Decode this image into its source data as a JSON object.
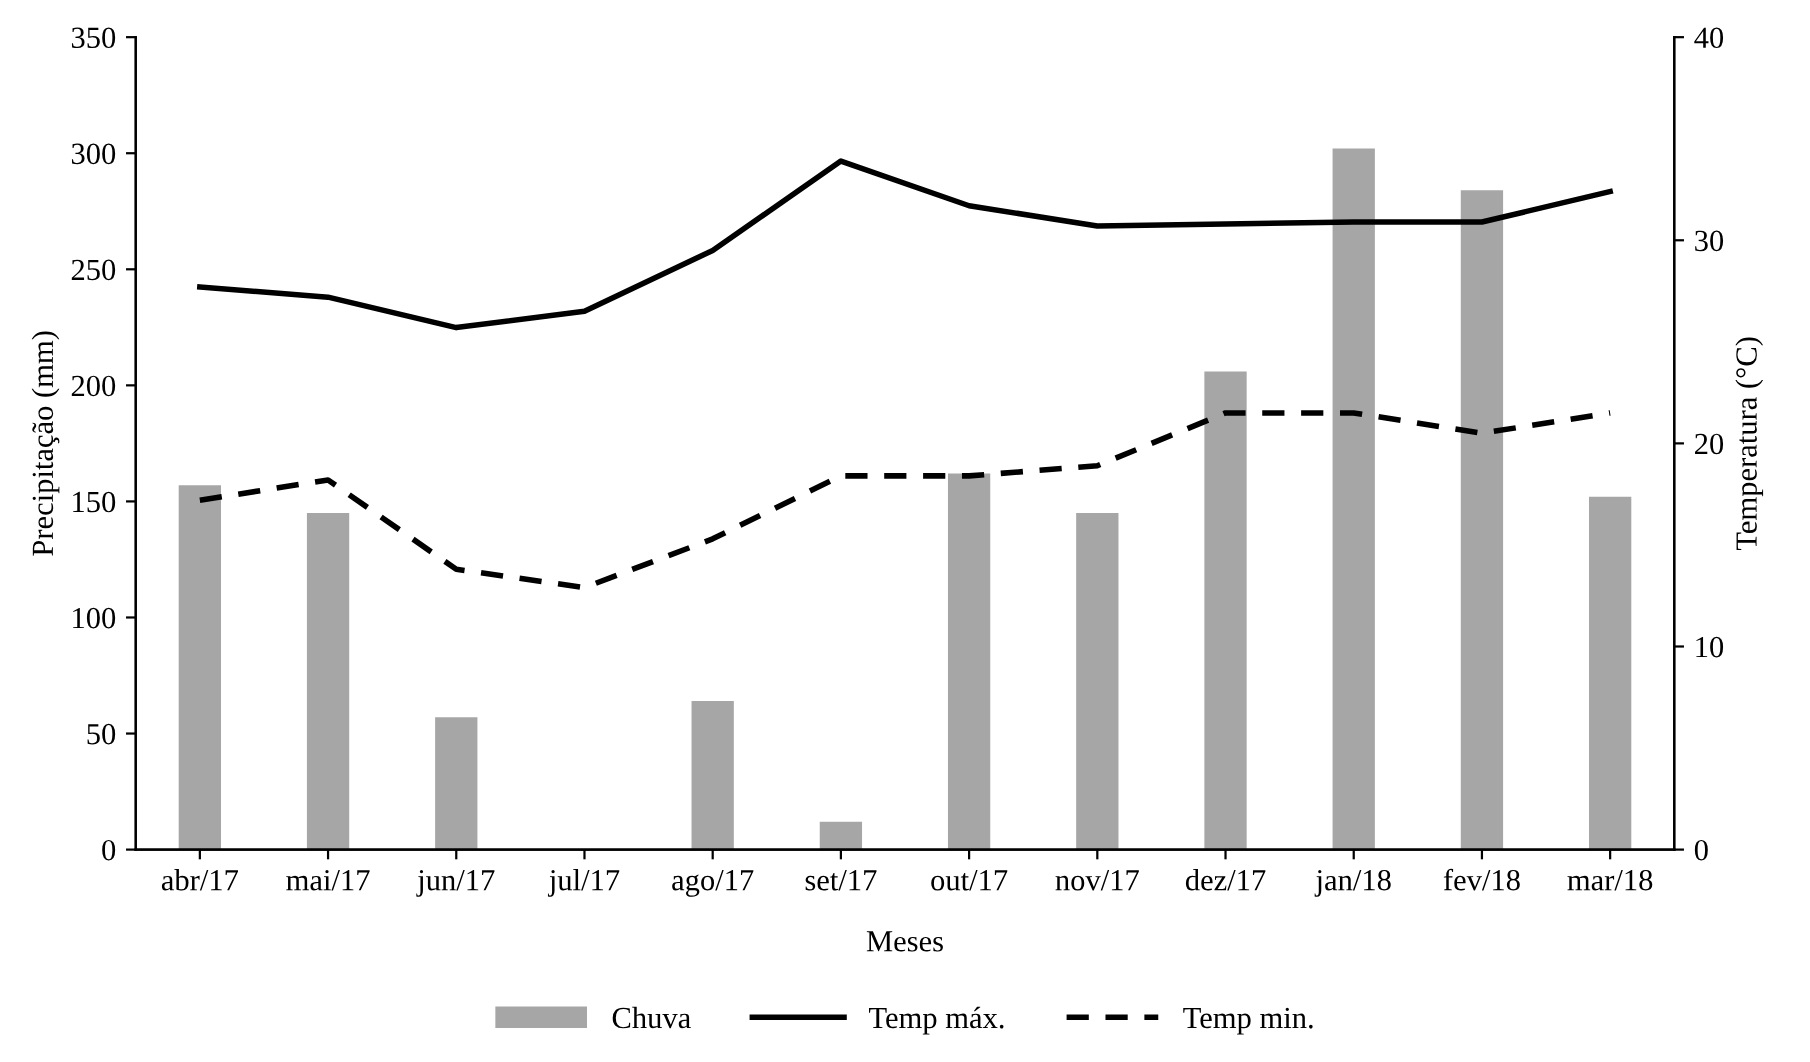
{
  "chart_data": {
    "type": "bar",
    "xlabel": "Meses",
    "ylabel": "Precipitação (mm)",
    "y2label": "Temperatura (°C)",
    "categories": [
      "abr/17",
      "mai/17",
      "jun/17",
      "jul/17",
      "ago/17",
      "set/17",
      "out/17",
      "nov/17",
      "dez/17",
      "jan/18",
      "fev/18",
      "mar/18"
    ],
    "series": [
      {
        "name": "Chuva",
        "color": "#a6a6a6",
        "values": [
          157,
          145,
          57,
          0,
          64,
          12,
          162,
          145,
          206,
          302,
          284,
          152
        ]
      },
      {
        "name": "Temp máx.",
        "type": "line",
        "axis": "y2",
        "color": "#000000",
        "line_style": "solid",
        "values": [
          27.7,
          27.2,
          25.7,
          26.5,
          29.5,
          33.9,
          31.7,
          30.7,
          30.8,
          30.9,
          30.9,
          32.4
        ]
      },
      {
        "name": "Temp min.",
        "type": "line",
        "axis": "y2",
        "color": "#000000",
        "line_style": "dashed",
        "values": [
          17.2,
          18.2,
          13.8,
          12.9,
          15.3,
          18.4,
          18.4,
          18.9,
          21.5,
          21.5,
          20.5,
          21.5
        ]
      }
    ],
    "ylim": [
      0,
      350
    ],
    "yticks": [
      0,
      50,
      100,
      150,
      200,
      250,
      300,
      350
    ],
    "y2lim": [
      0,
      40
    ],
    "y2ticks": [
      0,
      10,
      20,
      30,
      40
    ],
    "grid": false,
    "legend": "bottom",
    "marker": "none"
  }
}
